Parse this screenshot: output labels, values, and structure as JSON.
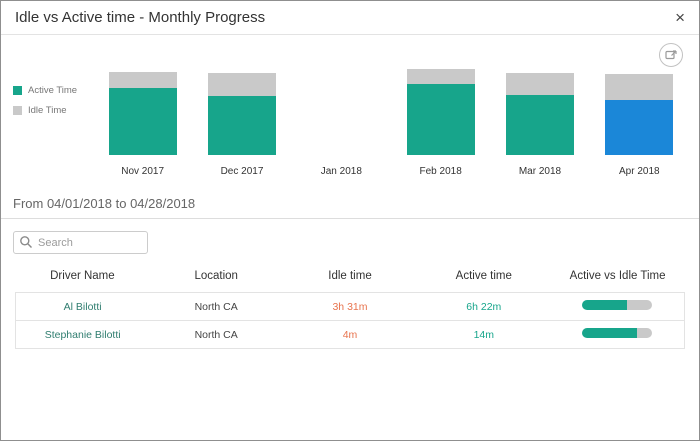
{
  "modal": {
    "title": "Idle vs Active time - Monthly Progress",
    "close_label": "×"
  },
  "toolbar": {
    "export_tooltip": "Export chart"
  },
  "chart_data": {
    "type": "bar",
    "stacked": true,
    "legend_position": "left",
    "values_unit": "relative",
    "categories": [
      "Nov 2017",
      "Dec 2017",
      "Jan 2018",
      "Feb 2018",
      "Mar 2018",
      "Apr 2018"
    ],
    "series": [
      {
        "name": "Active Time",
        "color": "#17a58b",
        "values": [
          59,
          52,
          0,
          63,
          53,
          49
        ]
      },
      {
        "name": "Idle Time",
        "color": "#c9c9c9",
        "values": [
          14,
          20,
          0,
          13,
          19,
          23
        ]
      }
    ],
    "selected_category": "Apr 2018",
    "selected_color": "#1b87d8"
  },
  "filters": {
    "date_range_label": "From 04/01/2018 to 04/28/2018",
    "search_placeholder": "Search"
  },
  "table": {
    "headers": [
      "Driver Name",
      "Location",
      "Idle time",
      "Active time",
      "Active vs Idle Time"
    ],
    "rows": [
      {
        "driver": "Al Bilotti",
        "location": "North CA",
        "idle": "3h 31m",
        "active": "6h 22m",
        "active_pct": 64
      },
      {
        "driver": "Stephanie Bilotti",
        "location": "North CA",
        "idle": "4m",
        "active": "14m",
        "active_pct": 78
      }
    ]
  },
  "colors": {
    "active_text": "#17a58b",
    "idle_text": "#e8744e",
    "driver_text": "#2f7d6f",
    "progress_rest": "#c9c9c9"
  }
}
